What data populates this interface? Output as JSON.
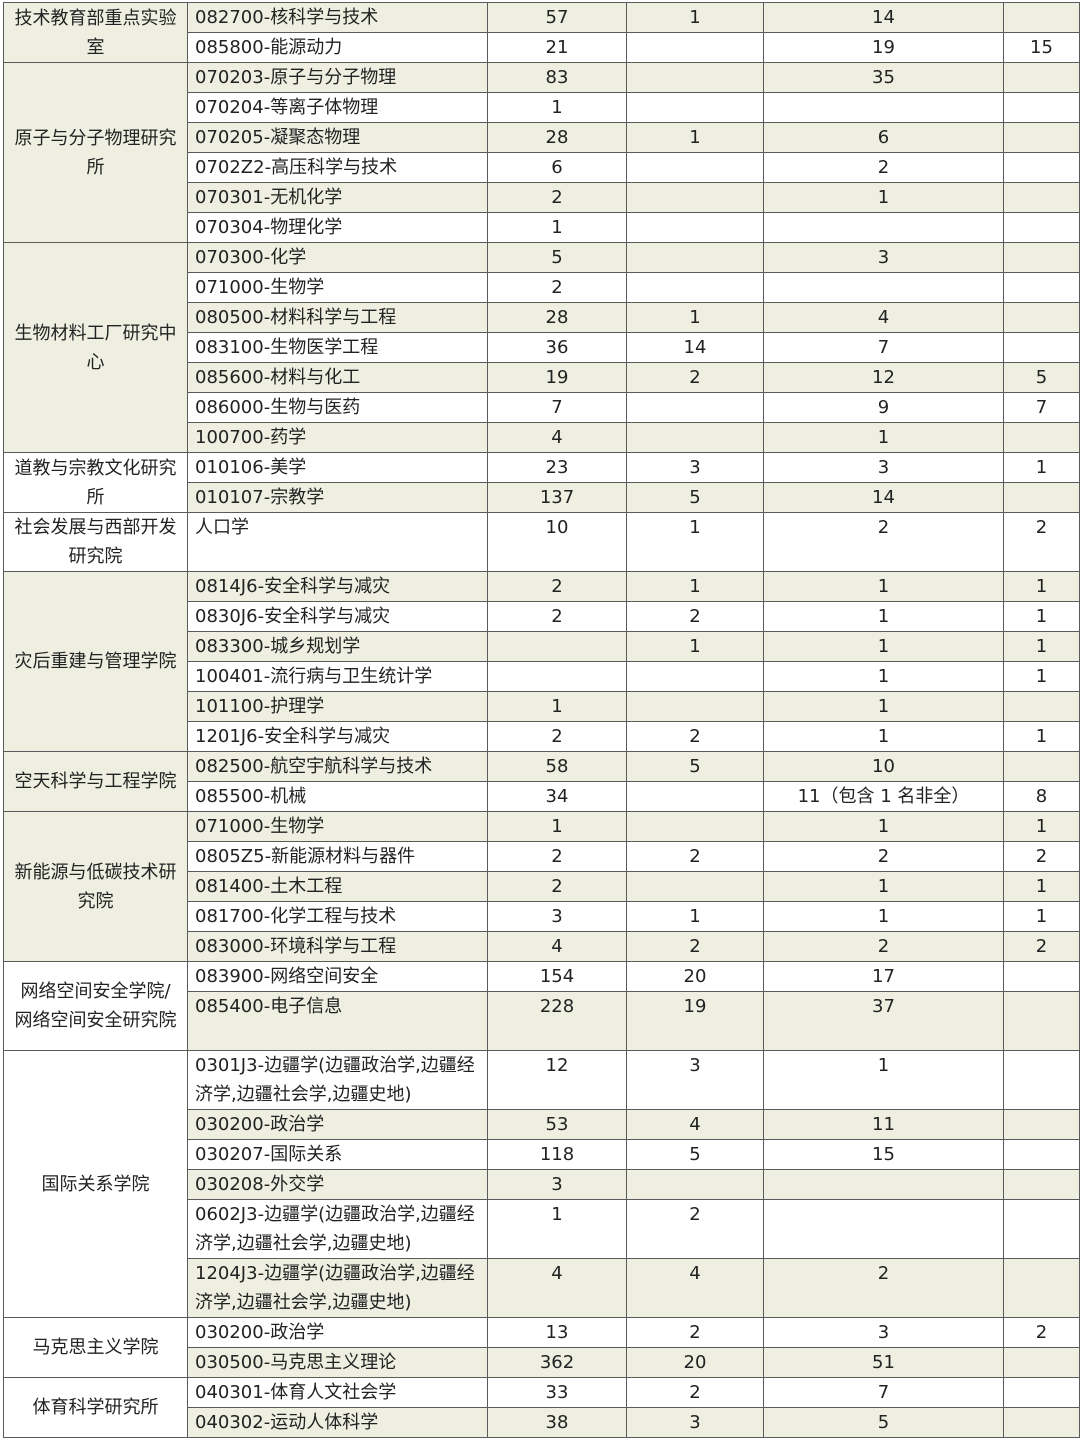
{
  "table": {
    "groups": [
      {
        "name": "技术教育部重点实验室",
        "rows": [
          [
            "082700-核科学与技术",
            "57",
            "1",
            "14",
            ""
          ],
          [
            "085800-能源动力",
            "21",
            "",
            "19",
            "15"
          ]
        ]
      },
      {
        "name": "原子与分子物理研究所",
        "rows": [
          [
            "070203-原子与分子物理",
            "83",
            "",
            "35",
            ""
          ],
          [
            "070204-等离子体物理",
            "1",
            "",
            "",
            ""
          ],
          [
            "070205-凝聚态物理",
            "28",
            "1",
            "6",
            ""
          ],
          [
            "0702Z2-高压科学与技术",
            "6",
            "",
            "2",
            ""
          ],
          [
            "070301-无机化学",
            "2",
            "",
            "1",
            ""
          ],
          [
            "070304-物理化学",
            "1",
            "",
            "",
            ""
          ]
        ]
      },
      {
        "name": "生物材料工厂研究中心",
        "rows": [
          [
            "070300-化学",
            "5",
            "",
            "3",
            ""
          ],
          [
            "071000-生物学",
            "2",
            "",
            "",
            ""
          ],
          [
            "080500-材料科学与工程",
            "28",
            "1",
            "4",
            ""
          ],
          [
            "083100-生物医学工程",
            "36",
            "14",
            "7",
            ""
          ],
          [
            "085600-材料与化工",
            "19",
            "2",
            "12",
            "5"
          ],
          [
            "086000-生物与医药",
            "7",
            "",
            "9",
            "7"
          ],
          [
            "100700-药学",
            "4",
            "",
            "1",
            ""
          ]
        ]
      },
      {
        "name": "道教与宗教文化研究所",
        "rows": [
          [
            "010106-美学",
            "23",
            "3",
            "3",
            "1"
          ],
          [
            "010107-宗教学",
            "137",
            "5",
            "14",
            ""
          ]
        ]
      },
      {
        "name": "社会发展与西部开发研究院",
        "rows": [
          [
            "人口学",
            "10",
            "1",
            "2",
            "2"
          ]
        ],
        "tall": [
          0
        ]
      },
      {
        "name": "灾后重建与管理学院",
        "rows": [
          [
            "0814J6-安全科学与减灾",
            "2",
            "1",
            "1",
            "1"
          ],
          [
            "0830J6-安全科学与减灾",
            "2",
            "2",
            "1",
            "1"
          ],
          [
            "083300-城乡规划学",
            "",
            "1",
            "1",
            "1"
          ],
          [
            "100401-流行病与卫生统计学",
            "",
            "",
            "1",
            "1"
          ],
          [
            "101100-护理学",
            "1",
            "",
            "1",
            ""
          ],
          [
            "1201J6-安全科学与减灾",
            "2",
            "2",
            "1",
            "1"
          ]
        ]
      },
      {
        "name": "空天科学与工程学院",
        "rows": [
          [
            "082500-航空宇航科学与技术",
            "58",
            "5",
            "10",
            ""
          ],
          [
            "085500-机械",
            "34",
            "",
            "11（包含 1 名非全）",
            "8"
          ]
        ]
      },
      {
        "name": "新能源与低碳技术研究院",
        "rows": [
          [
            "071000-生物学",
            "1",
            "",
            "1",
            "1"
          ],
          [
            "0805Z5-新能源材料与器件",
            "2",
            "2",
            "2",
            "2"
          ],
          [
            "081400-土木工程",
            "2",
            "",
            "1",
            "1"
          ],
          [
            "081700-化学工程与技术",
            "3",
            "1",
            "1",
            "1"
          ],
          [
            "083000-环境科学与工程",
            "4",
            "2",
            "2",
            "2"
          ]
        ]
      },
      {
        "name": "网络空间安全学院/网络空间安全研究院",
        "rows": [
          [
            "083900-网络空间安全",
            "154",
            "20",
            "17",
            ""
          ],
          [
            "085400-电子信息",
            "228",
            "19",
            "37",
            ""
          ]
        ],
        "tall": [
          1
        ]
      },
      {
        "name": "国际关系学院",
        "rows": [
          [
            "0301J3-边疆学(边疆政治学,边疆经济学,边疆社会学,边疆史地)",
            "12",
            "3",
            "1",
            ""
          ],
          [
            "030200-政治学",
            "53",
            "4",
            "11",
            ""
          ],
          [
            "030207-国际关系",
            "118",
            "5",
            "15",
            ""
          ],
          [
            "030208-外交学",
            "3",
            "",
            "",
            ""
          ],
          [
            "0602J3-边疆学(边疆政治学,边疆经济学,边疆社会学,边疆史地)",
            "1",
            "2",
            "",
            ""
          ],
          [
            "1204J3-边疆学(边疆政治学,边疆经济学,边疆社会学,边疆史地)",
            "4",
            "4",
            "2",
            ""
          ]
        ],
        "tall": [
          0,
          4,
          5
        ]
      },
      {
        "name": "马克思主义学院",
        "rows": [
          [
            "030200-政治学",
            "13",
            "2",
            "3",
            "2"
          ],
          [
            "030500-马克思主义理论",
            "362",
            "20",
            "51",
            ""
          ]
        ]
      },
      {
        "name": "体育科学研究所",
        "rows": [
          [
            "040301-体育人文社会学",
            "33",
            "2",
            "7",
            ""
          ],
          [
            "040302-运动人体科学",
            "38",
            "3",
            "5",
            ""
          ]
        ]
      }
    ]
  }
}
